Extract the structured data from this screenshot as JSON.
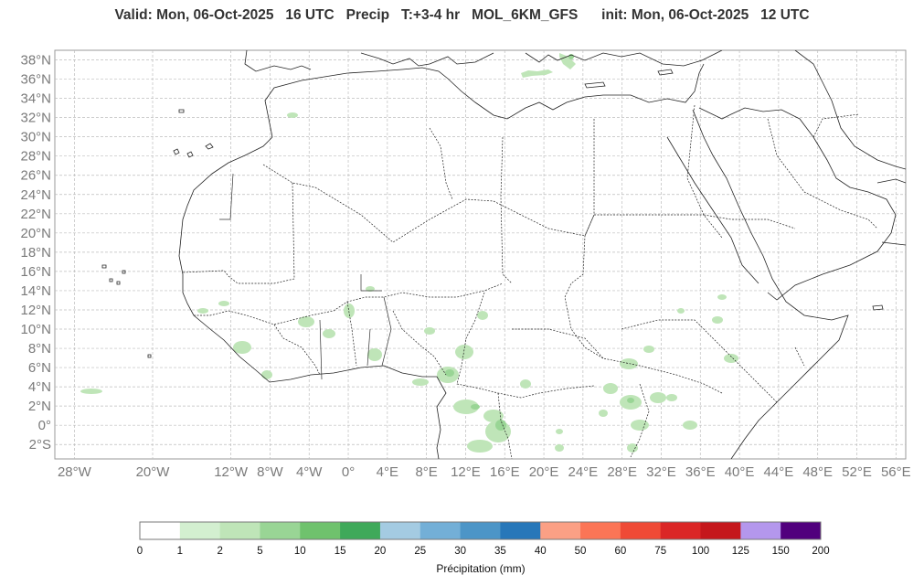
{
  "header": {
    "title": "Valid: Mon, 06-Oct-2025   16 UTC   Precip   T:+3-4 hr   MOL_6KM_GFS      init: Mon, 06-Oct-2025   12 UTC"
  },
  "map": {
    "variable": "Precip",
    "model": "MOL_6KM_GFS",
    "lon_range": [
      -30,
      57
    ],
    "lat_range": [
      -3.5,
      39
    ],
    "lat_ticks": [
      "38°N",
      "36°N",
      "34°N",
      "32°N",
      "30°N",
      "28°N",
      "26°N",
      "24°N",
      "22°N",
      "20°N",
      "18°N",
      "16°N",
      "14°N",
      "12°N",
      "10°N",
      "8°N",
      "6°N",
      "4°N",
      "2°N",
      "0°",
      "2°S"
    ],
    "lon_ticks": [
      "28°W",
      "20°W",
      "12°W",
      "8°W",
      "4°W",
      "0°",
      "4°E",
      "8°E",
      "12°E",
      "16°E",
      "20°E",
      "24°E",
      "28°E",
      "32°E",
      "36°E",
      "40°E",
      "44°E",
      "48°E",
      "52°E",
      "56°E"
    ],
    "grid": true,
    "colors": {
      "land_line": "#222222",
      "border_line": "#222222",
      "grid_line": "#bdbdbd",
      "frame": "#999999"
    }
  },
  "colorbar": {
    "title": "Précipitation (mm)",
    "levels": [
      "0",
      "1",
      "2",
      "5",
      "10",
      "15",
      "20",
      "25",
      "30",
      "35",
      "40",
      "50",
      "60",
      "75",
      "100",
      "125",
      "150",
      "200"
    ],
    "colors": [
      "#ffffff",
      "#d3efd0",
      "#bfe5b8",
      "#99d595",
      "#6fc26d",
      "#3fa95a",
      "#a4cbe2",
      "#73afd7",
      "#4c95c7",
      "#2777b9",
      "#fba085",
      "#fb7556",
      "#ef4a36",
      "#db2626",
      "#c5171c",
      "#b497ed",
      "#51007d"
    ]
  }
}
